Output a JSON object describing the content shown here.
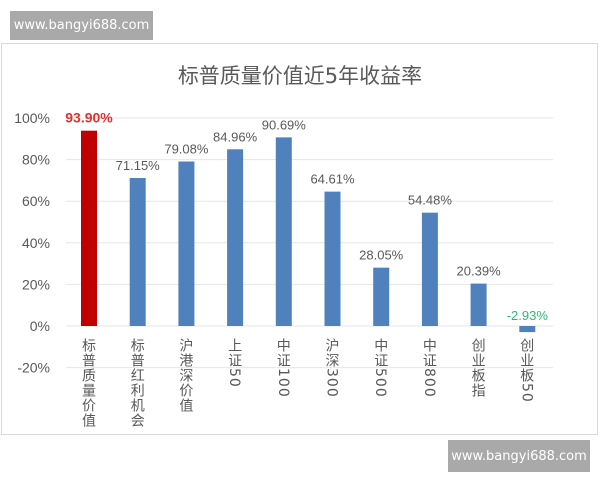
{
  "watermarks": [
    "www.bangyi688.com",
    "www.bangyi688.com"
  ],
  "colors": {
    "highlight": "#c00000",
    "bar": "#4f81bd",
    "negative_label": "#2eb872",
    "highlight_label": "#e03030",
    "text": "#595959"
  },
  "chart_data": {
    "type": "bar",
    "title": "标普质量价值近5年收益率",
    "categories": [
      "标普质量价值",
      "标普红利机会",
      "沪港深价值",
      "上证50",
      "中证100",
      "沪深300",
      "中证500",
      "中证800",
      "创业板指",
      "创业板50"
    ],
    "values": [
      93.9,
      71.15,
      79.08,
      84.96,
      90.69,
      64.61,
      28.05,
      54.48,
      20.39,
      -2.93
    ],
    "data_labels": [
      "93.90%",
      "71.15%",
      "79.08%",
      "84.96%",
      "90.69%",
      "64.61%",
      "28.05%",
      "54.48%",
      "20.39%",
      "-2.93%"
    ],
    "highlight_index": 0,
    "ylim": [
      -20,
      100
    ],
    "yticks": [
      -20,
      0,
      20,
      40,
      60,
      80,
      100
    ],
    "ytick_labels": [
      "-20%",
      "0%",
      "20%",
      "40%",
      "60%",
      "80%",
      "100%"
    ],
    "xlabel": "",
    "ylabel": "",
    "grid": true,
    "legend": "none"
  }
}
